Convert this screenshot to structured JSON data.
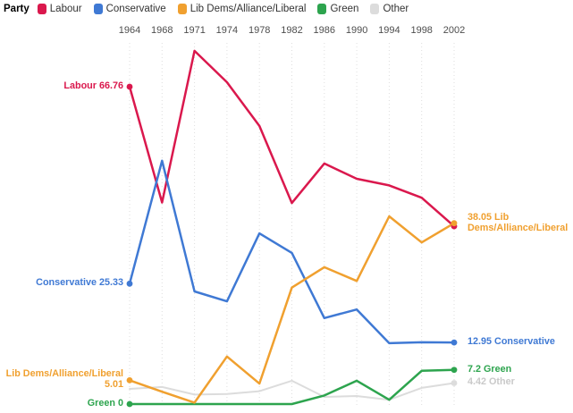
{
  "legend": {
    "title": "Party",
    "items": [
      {
        "id": "labour",
        "label": "Labour",
        "color": "#da184d"
      },
      {
        "id": "conservative",
        "label": "Conservative",
        "color": "#3f79d4"
      },
      {
        "id": "libdem",
        "label": "Lib Dems/Alliance/Liberal",
        "color": "#f0a02f"
      },
      {
        "id": "green",
        "label": "Green",
        "color": "#2da44e"
      },
      {
        "id": "other",
        "label": "Other",
        "color": "#dcdcdc"
      }
    ]
  },
  "chart_data": {
    "type": "line",
    "x": [
      1964,
      1968,
      1971,
      1974,
      1978,
      1982,
      1986,
      1990,
      1994,
      1998,
      2002
    ],
    "x_axis_position": "top",
    "ylim": [
      0,
      76
    ],
    "y_axis_visible": false,
    "grid": "vertical-dotted",
    "series": [
      {
        "id": "labour",
        "name": "Labour",
        "color": "#da184d",
        "values": [
          66.76,
          42.4,
          74.3,
          67.7,
          58.5,
          42.3,
          50.6,
          47.4,
          46.0,
          43.4,
          37.4
        ],
        "start_dot": true,
        "end_dot": true
      },
      {
        "id": "conservative",
        "name": "Conservative",
        "color": "#3f79d4",
        "values": [
          25.33,
          51.2,
          23.7,
          21.6,
          35.9,
          31.8,
          18.1,
          19.9,
          12.8,
          13.0,
          12.95
        ],
        "start_dot": true,
        "end_dot": true
      },
      {
        "id": "libdem",
        "name": "Lib Dems/Alliance/Liberal",
        "color": "#f0a02f",
        "values": [
          5.01,
          2.6,
          0.3,
          10.0,
          4.3,
          24.5,
          28.8,
          25.9,
          39.5,
          34.0,
          38.05
        ],
        "start_dot": true,
        "end_dot": true
      },
      {
        "id": "green",
        "name": "Green",
        "color": "#2da44e",
        "values": [
          0,
          0,
          0,
          0,
          0,
          0,
          1.8,
          4.9,
          0.9,
          7.0,
          7.2
        ],
        "start_dot": true,
        "end_dot": true
      },
      {
        "id": "other",
        "name": "Other",
        "color": "#dcdcdc",
        "values": [
          3.2,
          3.6,
          2.0,
          2.1,
          2.7,
          4.9,
          1.5,
          1.7,
          0.9,
          3.4,
          4.42
        ],
        "start_dot": false,
        "end_dot": true
      }
    ],
    "annotations": [
      {
        "series": "labour",
        "side": "left",
        "lines": [
          "Labour 66.76"
        ]
      },
      {
        "series": "conservative",
        "side": "left",
        "lines": [
          "Conservative 25.33"
        ]
      },
      {
        "series": "libdem",
        "side": "left",
        "lines": [
          "Lib Dems/Alliance/Liberal",
          "5.01"
        ]
      },
      {
        "series": "green",
        "side": "left",
        "lines": [
          "Green 0"
        ]
      },
      {
        "series": "libdem",
        "side": "right",
        "lines": [
          "38.05 Lib",
          "Dems/Alliance/Liberal"
        ]
      },
      {
        "series": "conservative",
        "side": "right",
        "lines": [
          "12.95 Conservative"
        ]
      },
      {
        "series": "green",
        "side": "right",
        "lines": [
          "7.2 Green"
        ]
      },
      {
        "series": "other",
        "side": "right",
        "lines": [
          "4.42 Other"
        ],
        "color": "#c9c9c9"
      }
    ]
  }
}
